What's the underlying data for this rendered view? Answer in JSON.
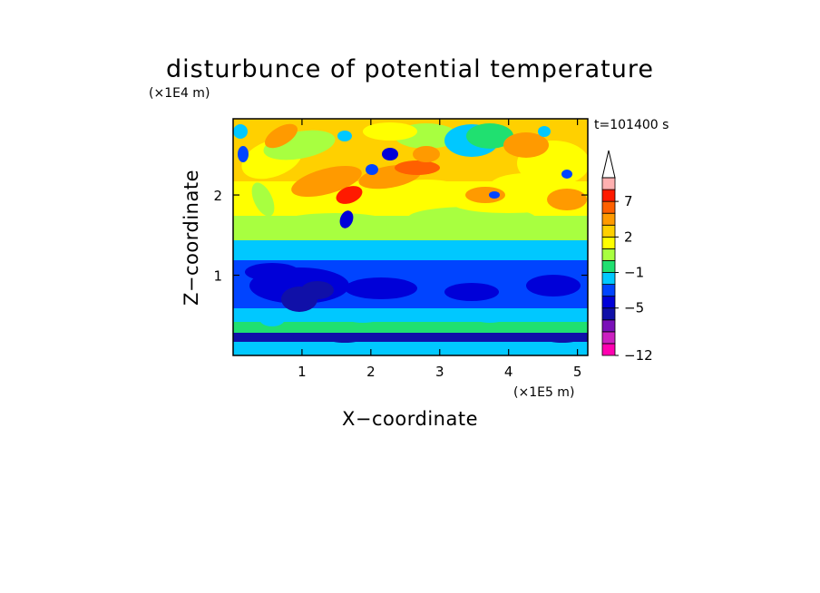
{
  "chart_data": {
    "type": "heatmap",
    "title": "disturbunce of potential temperature",
    "time_label": "t=101400 s",
    "xlabel": "X−coordinate",
    "ylabel": "Z−coordinate",
    "x_unit": "(×1E5 m)",
    "y_unit": "(×1E4 m)",
    "xlim": [
      0,
      5.15
    ],
    "ylim": [
      0,
      2.95
    ],
    "x_ticks": [
      1,
      2,
      3,
      4,
      5
    ],
    "y_ticks": [
      1,
      2
    ],
    "x_tick_labels": [
      "1",
      "2",
      "3",
      "4",
      "5"
    ],
    "y_tick_labels": [
      "1",
      "2"
    ],
    "colorbar": {
      "levels": [
        -12,
        -11,
        -9,
        -7,
        -5,
        -4,
        -2,
        -1,
        0,
        1,
        2,
        3,
        5,
        7,
        9,
        11
      ],
      "tick_labels": [
        "7",
        "2",
        "−1",
        "−5",
        "−12"
      ],
      "tick_values": [
        7,
        2,
        -1,
        -5,
        -12
      ],
      "colors": [
        "#ff00b0",
        "#cc20c0",
        "#7a10b8",
        "#1010a8",
        "#0000d8",
        "#0044ff",
        "#00c8ff",
        "#20e070",
        "#a8ff40",
        "#ffff00",
        "#ffd000",
        "#ff9a00",
        "#ff6000",
        "#ff1a00",
        "#ffb0b0"
      ],
      "extend": "max"
    },
    "regions": [
      {
        "z_range": [
          0.0,
          0.22
        ],
        "description_value": -1
      },
      {
        "z_range": [
          0.22,
          0.6
        ],
        "description_value": -1
      },
      {
        "z_range": [
          0.6,
          1.22
        ],
        "description_value": -5
      },
      {
        "z_range": [
          1.22,
          1.45
        ],
        "description_value": -1
      },
      {
        "z_range": [
          1.45,
          2.95
        ],
        "description_value": 2
      }
    ]
  }
}
